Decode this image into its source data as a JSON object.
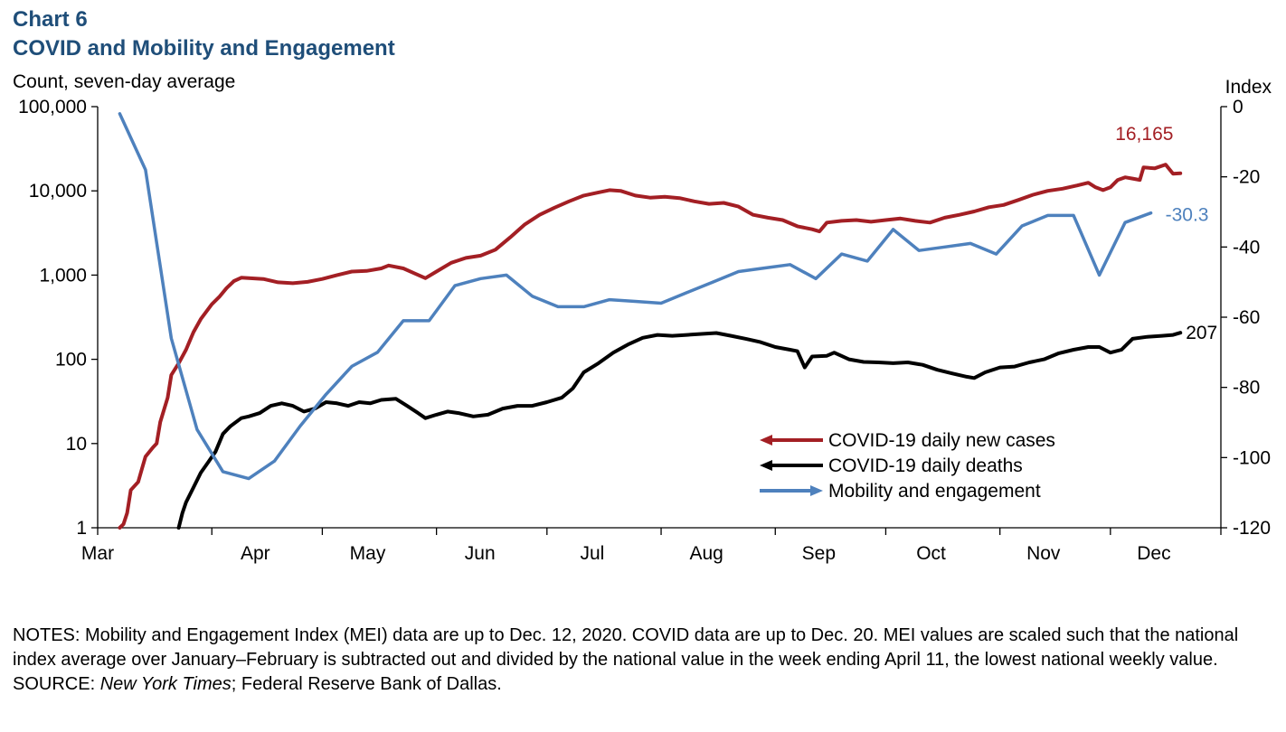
{
  "header": {
    "chart_number": "Chart 6",
    "title": "COVID and Mobility and Engagement"
  },
  "notes": {
    "notes_text": "NOTES: Mobility and Engagement Index (MEI) data are up to Dec. 12, 2020. COVID data are up to Dec. 20. MEI values are scaled such that the national index average over January–February is subtracted out and divided by the national value in the week ending April 11, the lowest national weekly value.",
    "source_label": "SOURCE: ",
    "source_italic": "New York Times",
    "source_rest": "; Federal Reserve Bank of Dallas."
  },
  "chart_data": {
    "type": "line",
    "title": "COVID and Mobility and Engagement",
    "y_left_label": "Count, seven-day average",
    "y_left_scale": "log",
    "y_left_range": [
      1,
      100000
    ],
    "y_left_ticks": [
      1,
      10,
      100,
      1000,
      10000,
      100000
    ],
    "y_left_tick_labels": [
      "1",
      "10",
      "100",
      "1,000",
      "10,000",
      "100,000"
    ],
    "y_right_label": "Index",
    "y_right_range": [
      -120,
      0
    ],
    "y_right_ticks": [
      0,
      -20,
      -40,
      -60,
      -80,
      -100,
      -120
    ],
    "y_right_tick_labels": [
      "0",
      "-20",
      "-40",
      "-60",
      "-80",
      "-100",
      "-120"
    ],
    "x_range": [
      "2020-03-01",
      "2020-12-31"
    ],
    "x_ticks": [
      "2020-03-01",
      "2020-04-01",
      "2020-05-01",
      "2020-06-01",
      "2020-07-01",
      "2020-08-01",
      "2020-09-01",
      "2020-10-01",
      "2020-11-01",
      "2020-12-01"
    ],
    "x_tick_labels": [
      "Mar",
      "Apr",
      "May",
      "Jun",
      "Jul",
      "Aug",
      "Sep",
      "Oct",
      "Nov",
      "Dec"
    ],
    "grid": false,
    "legend_position": "bottom-right",
    "series": [
      {
        "name": "COVID-19 daily new cases",
        "axis": "left",
        "color": "#a31f24",
        "end_label": "16,165",
        "points": [
          [
            "2020-03-07",
            1
          ],
          [
            "2020-03-08",
            1.1
          ],
          [
            "2020-03-09",
            1.5
          ],
          [
            "2020-03-10",
            2.8
          ],
          [
            "2020-03-12",
            3.5
          ],
          [
            "2020-03-13",
            5
          ],
          [
            "2020-03-14",
            7
          ],
          [
            "2020-03-16",
            9
          ],
          [
            "2020-03-17",
            10
          ],
          [
            "2020-03-18",
            18
          ],
          [
            "2020-03-20",
            35
          ],
          [
            "2020-03-21",
            65
          ],
          [
            "2020-03-23",
            90
          ],
          [
            "2020-03-25",
            130
          ],
          [
            "2020-03-27",
            210
          ],
          [
            "2020-03-29",
            300
          ],
          [
            "2020-04-01",
            450
          ],
          [
            "2020-04-03",
            550
          ],
          [
            "2020-04-05",
            700
          ],
          [
            "2020-04-07",
            850
          ],
          [
            "2020-04-09",
            930
          ],
          [
            "2020-04-11",
            920
          ],
          [
            "2020-04-15",
            900
          ],
          [
            "2020-04-19",
            820
          ],
          [
            "2020-04-23",
            800
          ],
          [
            "2020-04-27",
            830
          ],
          [
            "2020-05-01",
            900
          ],
          [
            "2020-05-05",
            1000
          ],
          [
            "2020-05-09",
            1100
          ],
          [
            "2020-05-13",
            1120
          ],
          [
            "2020-05-17",
            1200
          ],
          [
            "2020-05-19",
            1300
          ],
          [
            "2020-05-23",
            1200
          ],
          [
            "2020-05-26",
            1050
          ],
          [
            "2020-05-29",
            920
          ],
          [
            "2020-06-01",
            1100
          ],
          [
            "2020-06-05",
            1400
          ],
          [
            "2020-06-09",
            1600
          ],
          [
            "2020-06-13",
            1700
          ],
          [
            "2020-06-17",
            2000
          ],
          [
            "2020-06-21",
            2800
          ],
          [
            "2020-06-25",
            4000
          ],
          [
            "2020-06-29",
            5200
          ],
          [
            "2020-07-03",
            6300
          ],
          [
            "2020-07-07",
            7500
          ],
          [
            "2020-07-11",
            8800
          ],
          [
            "2020-07-15",
            9600
          ],
          [
            "2020-07-18",
            10200
          ],
          [
            "2020-07-21",
            10000
          ],
          [
            "2020-07-25",
            8800
          ],
          [
            "2020-07-29",
            8300
          ],
          [
            "2020-08-02",
            8500
          ],
          [
            "2020-08-06",
            8200
          ],
          [
            "2020-08-10",
            7500
          ],
          [
            "2020-08-14",
            7000
          ],
          [
            "2020-08-18",
            7200
          ],
          [
            "2020-08-22",
            6500
          ],
          [
            "2020-08-26",
            5200
          ],
          [
            "2020-08-30",
            4800
          ],
          [
            "2020-09-03",
            4500
          ],
          [
            "2020-09-07",
            3800
          ],
          [
            "2020-09-11",
            3500
          ],
          [
            "2020-09-13",
            3300
          ],
          [
            "2020-09-15",
            4200
          ],
          [
            "2020-09-19",
            4400
          ],
          [
            "2020-09-23",
            4500
          ],
          [
            "2020-09-27",
            4300
          ],
          [
            "2020-10-01",
            4500
          ],
          [
            "2020-10-05",
            4700
          ],
          [
            "2020-10-09",
            4400
          ],
          [
            "2020-10-13",
            4200
          ],
          [
            "2020-10-17",
            4800
          ],
          [
            "2020-10-21",
            5200
          ],
          [
            "2020-10-25",
            5700
          ],
          [
            "2020-10-29",
            6400
          ],
          [
            "2020-11-02",
            6800
          ],
          [
            "2020-11-06",
            7800
          ],
          [
            "2020-11-10",
            9000
          ],
          [
            "2020-11-14",
            10000
          ],
          [
            "2020-11-18",
            10600
          ],
          [
            "2020-11-22",
            11600
          ],
          [
            "2020-11-25",
            12500
          ],
          [
            "2020-11-27",
            11000
          ],
          [
            "2020-11-29",
            10200
          ],
          [
            "2020-12-01",
            11000
          ],
          [
            "2020-12-03",
            13500
          ],
          [
            "2020-12-05",
            14500
          ],
          [
            "2020-12-07",
            14000
          ],
          [
            "2020-12-09",
            13500
          ],
          [
            "2020-12-10",
            19000
          ],
          [
            "2020-12-13",
            18500
          ],
          [
            "2020-12-16",
            20500
          ],
          [
            "2020-12-18",
            16000
          ],
          [
            "2020-12-20",
            16165
          ]
        ]
      },
      {
        "name": "COVID-19 daily deaths",
        "axis": "left",
        "color": "#000000",
        "end_label": "207",
        "points": [
          [
            "2020-03-23",
            1
          ],
          [
            "2020-03-24",
            1.5
          ],
          [
            "2020-03-25",
            2
          ],
          [
            "2020-03-27",
            3
          ],
          [
            "2020-03-29",
            4.5
          ],
          [
            "2020-03-31",
            6
          ],
          [
            "2020-04-02",
            8
          ],
          [
            "2020-04-04",
            13
          ],
          [
            "2020-04-06",
            16
          ],
          [
            "2020-04-09",
            20
          ],
          [
            "2020-04-11",
            21
          ],
          [
            "2020-04-14",
            23
          ],
          [
            "2020-04-17",
            28
          ],
          [
            "2020-04-20",
            30
          ],
          [
            "2020-04-23",
            28
          ],
          [
            "2020-04-26",
            24
          ],
          [
            "2020-04-29",
            26
          ],
          [
            "2020-05-02",
            31
          ],
          [
            "2020-05-05",
            30
          ],
          [
            "2020-05-08",
            28
          ],
          [
            "2020-05-11",
            31
          ],
          [
            "2020-05-14",
            30
          ],
          [
            "2020-05-17",
            33
          ],
          [
            "2020-05-21",
            34
          ],
          [
            "2020-05-24",
            28
          ],
          [
            "2020-05-27",
            23
          ],
          [
            "2020-05-29",
            20
          ],
          [
            "2020-06-01",
            22
          ],
          [
            "2020-06-04",
            24
          ],
          [
            "2020-06-07",
            23
          ],
          [
            "2020-06-11",
            21
          ],
          [
            "2020-06-15",
            22
          ],
          [
            "2020-06-19",
            26
          ],
          [
            "2020-06-23",
            28
          ],
          [
            "2020-06-27",
            28
          ],
          [
            "2020-07-01",
            31
          ],
          [
            "2020-07-05",
            35
          ],
          [
            "2020-07-08",
            45
          ],
          [
            "2020-07-11",
            70
          ],
          [
            "2020-07-15",
            90
          ],
          [
            "2020-07-19",
            120
          ],
          [
            "2020-07-23",
            150
          ],
          [
            "2020-07-27",
            180
          ],
          [
            "2020-07-31",
            195
          ],
          [
            "2020-08-04",
            190
          ],
          [
            "2020-08-08",
            195
          ],
          [
            "2020-08-12",
            200
          ],
          [
            "2020-08-16",
            205
          ],
          [
            "2020-08-20",
            190
          ],
          [
            "2020-08-24",
            175
          ],
          [
            "2020-08-28",
            160
          ],
          [
            "2020-09-01",
            140
          ],
          [
            "2020-09-05",
            130
          ],
          [
            "2020-09-07",
            125
          ],
          [
            "2020-09-09",
            80
          ],
          [
            "2020-09-11",
            108
          ],
          [
            "2020-09-15",
            110
          ],
          [
            "2020-09-17",
            120
          ],
          [
            "2020-09-21",
            100
          ],
          [
            "2020-09-25",
            93
          ],
          [
            "2020-09-29",
            92
          ],
          [
            "2020-10-03",
            90
          ],
          [
            "2020-10-07",
            92
          ],
          [
            "2020-10-11",
            86
          ],
          [
            "2020-10-15",
            75
          ],
          [
            "2020-10-19",
            68
          ],
          [
            "2020-10-23",
            62
          ],
          [
            "2020-10-25",
            60
          ],
          [
            "2020-10-28",
            70
          ],
          [
            "2020-11-01",
            80
          ],
          [
            "2020-11-05",
            82
          ],
          [
            "2020-11-09",
            92
          ],
          [
            "2020-11-13",
            100
          ],
          [
            "2020-11-17",
            118
          ],
          [
            "2020-11-21",
            130
          ],
          [
            "2020-11-25",
            140
          ],
          [
            "2020-11-28",
            140
          ],
          [
            "2020-12-01",
            120
          ],
          [
            "2020-12-04",
            130
          ],
          [
            "2020-12-07",
            175
          ],
          [
            "2020-12-11",
            185
          ],
          [
            "2020-12-15",
            190
          ],
          [
            "2020-12-18",
            195
          ],
          [
            "2020-12-20",
            207
          ]
        ]
      },
      {
        "name": "Mobility and engagement",
        "axis": "right",
        "color": "#4e81bd",
        "end_label": "-30.3",
        "points": [
          [
            "2020-03-07",
            -2
          ],
          [
            "2020-03-14",
            -18
          ],
          [
            "2020-03-21",
            -66
          ],
          [
            "2020-03-28",
            -92
          ],
          [
            "2020-04-04",
            -104
          ],
          [
            "2020-04-11",
            -106
          ],
          [
            "2020-04-18",
            -101
          ],
          [
            "2020-04-25",
            -91
          ],
          [
            "2020-05-02",
            -82
          ],
          [
            "2020-05-09",
            -74
          ],
          [
            "2020-05-16",
            -70
          ],
          [
            "2020-05-23",
            -61
          ],
          [
            "2020-05-30",
            -61
          ],
          [
            "2020-06-06",
            -51
          ],
          [
            "2020-06-13",
            -49
          ],
          [
            "2020-06-20",
            -48
          ],
          [
            "2020-06-27",
            -54
          ],
          [
            "2020-07-04",
            -57
          ],
          [
            "2020-07-11",
            -57
          ],
          [
            "2020-07-18",
            -55
          ],
          [
            "2020-07-25",
            -55.5
          ],
          [
            "2020-08-01",
            -56
          ],
          [
            "2020-08-08",
            -53
          ],
          [
            "2020-08-15",
            -50
          ],
          [
            "2020-08-22",
            -47
          ],
          [
            "2020-08-29",
            -46
          ],
          [
            "2020-09-05",
            -45
          ],
          [
            "2020-09-12",
            -49
          ],
          [
            "2020-09-19",
            -42
          ],
          [
            "2020-09-26",
            -44
          ],
          [
            "2020-10-03",
            -35
          ],
          [
            "2020-10-10",
            -41
          ],
          [
            "2020-10-17",
            -40
          ],
          [
            "2020-10-24",
            -39
          ],
          [
            "2020-10-31",
            -42
          ],
          [
            "2020-11-07",
            -34
          ],
          [
            "2020-11-14",
            -31
          ],
          [
            "2020-11-21",
            -31
          ],
          [
            "2020-11-28",
            -48
          ],
          [
            "2020-12-05",
            -33
          ],
          [
            "2020-12-12",
            -30.3
          ]
        ]
      }
    ]
  }
}
